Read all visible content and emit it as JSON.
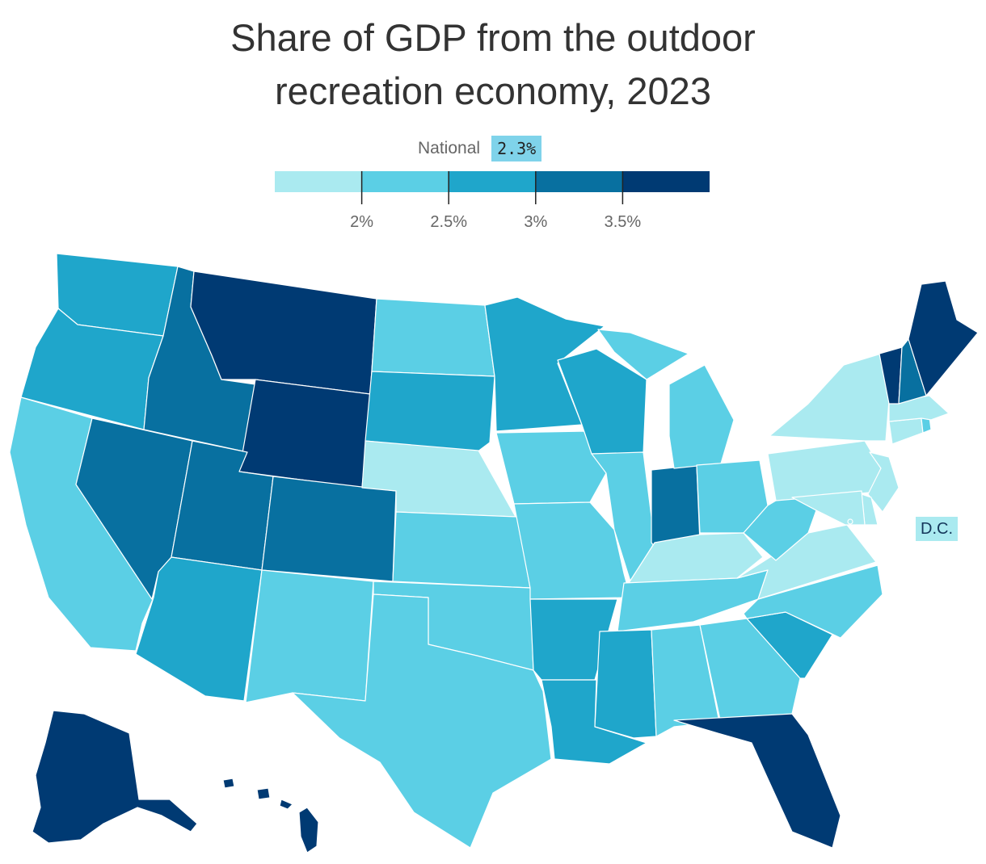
{
  "title_lines": [
    "Share of GDP from the outdoor",
    "recreation economy, 2023"
  ],
  "national": {
    "label": "National",
    "value": "2.3%"
  },
  "legend": {
    "colors": [
      "#aaeaf0",
      "#5bcfe5",
      "#1fa6cb",
      "#0870a0",
      "#003a73"
    ],
    "ticks": [
      {
        "value": 2.0,
        "label": "2%"
      },
      {
        "value": 2.5,
        "label": "2.5%"
      },
      {
        "value": 3.0,
        "label": "3%"
      },
      {
        "value": 3.5,
        "label": "3.5%"
      }
    ],
    "range": [
      1.5,
      4.0
    ]
  },
  "dc_label": "D.C.",
  "states": {
    "WA": 2,
    "OR": 2,
    "CA": 1,
    "NV": 3,
    "ID": 3,
    "MT": 4,
    "WY": 4,
    "UT": 3,
    "CO": 3,
    "AZ": 2,
    "NM": 1,
    "TX": 1,
    "OK": 1,
    "KS": 1,
    "NE": 0,
    "SD": 2,
    "ND": 1,
    "MN": 2,
    "IA": 1,
    "MO": 1,
    "AR": 2,
    "LA": 2,
    "WI": 2,
    "IL": 1,
    "MI": 1,
    "IN": 3,
    "OH": 1,
    "KY": 0,
    "TN": 1,
    "MS": 2,
    "AL": 1,
    "GA": 1,
    "FL": 4,
    "SC": 2,
    "NC": 1,
    "VA": 0,
    "WV": 1,
    "PA": 0,
    "NY": 0,
    "VT": 4,
    "NH": 3,
    "ME": 4,
    "MA": 0,
    "CT": 0,
    "RI": 1,
    "NJ": 0,
    "DE": 0,
    "MD": 0,
    "AK": 4,
    "HI": 4,
    "DC": 0
  }
}
